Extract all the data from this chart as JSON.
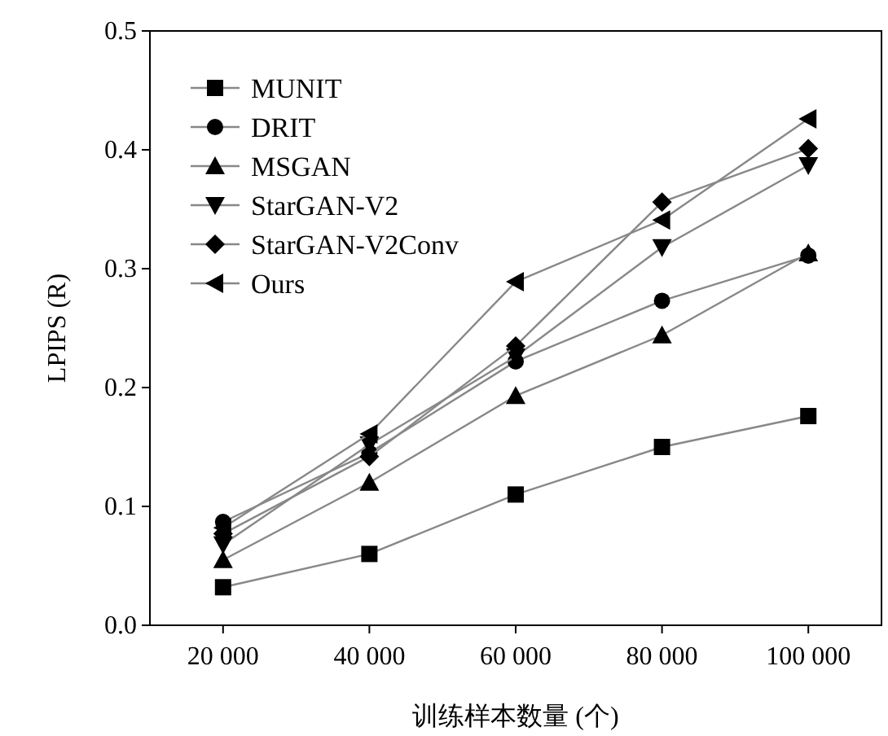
{
  "chart_data": {
    "type": "line",
    "xlabel": "训练样本数量 (个)",
    "ylabel": "LPIPS (R)",
    "categories": [
      "20 000",
      "40 000",
      "60 000",
      "80 000",
      "100 000"
    ],
    "ylim": [
      0,
      0.5
    ],
    "yticks": [
      {
        "value": 0,
        "label": "0.0"
      },
      {
        "value": 0.1,
        "label": "0.1"
      },
      {
        "value": 0.2,
        "label": "0.2"
      },
      {
        "value": 0.3,
        "label": "0.3"
      },
      {
        "value": 0.4,
        "label": "0.4"
      },
      {
        "value": 0.5,
        "label": "0.5"
      }
    ],
    "legend": "top left",
    "grid": false,
    "series": [
      {
        "name": "MUNIT",
        "color": "#000000",
        "marker": "square",
        "values": [
          0.032,
          0.06,
          0.11,
          0.15,
          0.176
        ]
      },
      {
        "name": "DRIT",
        "color": "#000000",
        "marker": "circle",
        "values": [
          0.087,
          0.145,
          0.222,
          0.273,
          0.311
        ]
      },
      {
        "name": "MSGAN",
        "color": "#000000",
        "marker": "triangle",
        "values": [
          0.055,
          0.12,
          0.193,
          0.244,
          0.313
        ]
      },
      {
        "name": "StarGAN-V2",
        "color": "#000000",
        "marker": "triangle-down",
        "values": [
          0.068,
          0.152,
          0.226,
          0.318,
          0.387
        ]
      },
      {
        "name": "StarGAN-V2Conv",
        "color": "#000000",
        "marker": "diamond",
        "values": [
          0.077,
          0.142,
          0.235,
          0.356,
          0.401
        ]
      },
      {
        "name": "Ours",
        "color": "#000000",
        "marker": "triangle-left",
        "values": [
          0.082,
          0.161,
          0.289,
          0.341,
          0.426
        ]
      }
    ]
  }
}
